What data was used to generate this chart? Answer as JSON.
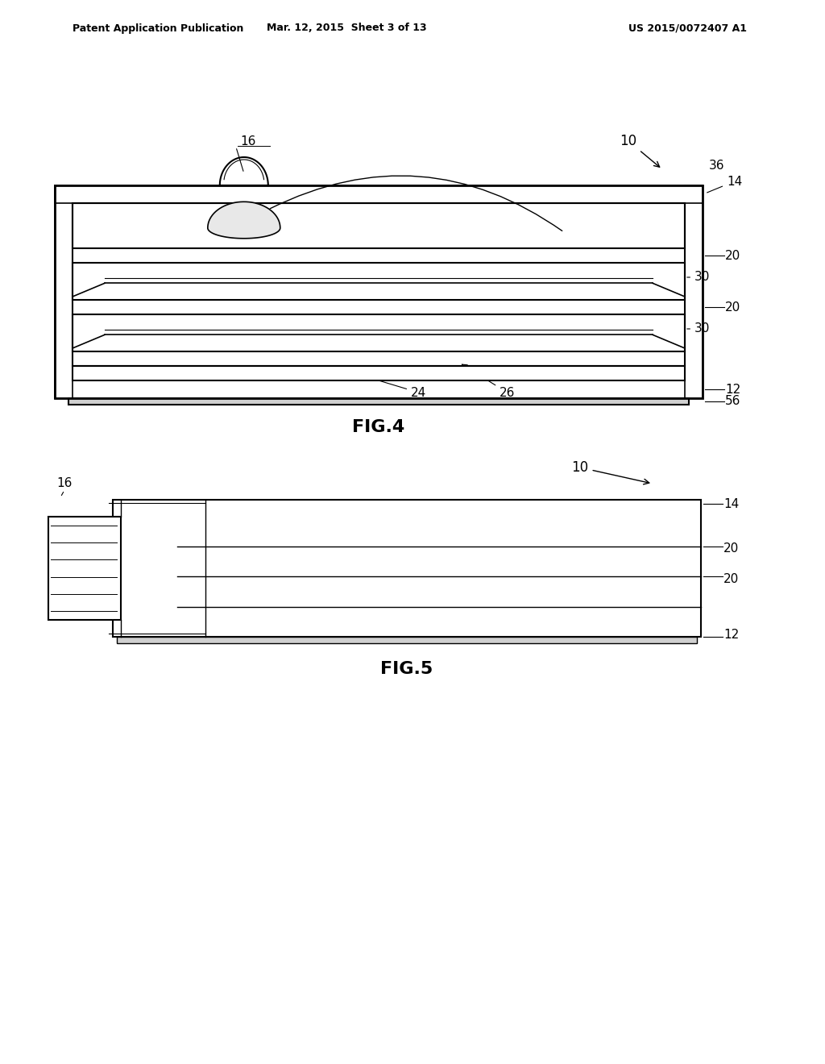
{
  "header_left": "Patent Application Publication",
  "header_mid": "Mar. 12, 2015  Sheet 3 of 13",
  "header_right": "US 2015/0072407 A1",
  "fig4_label": "FIG.4",
  "fig5_label": "FIG.5",
  "bg_color": "#ffffff",
  "line_color": "#000000",
  "hatch_color": "#000000",
  "fig4_title_ref": "10",
  "fig5_title_ref": "10"
}
